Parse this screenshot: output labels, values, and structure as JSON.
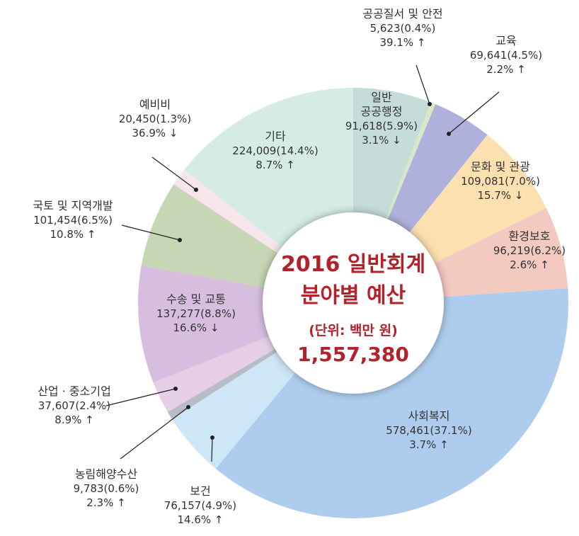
{
  "chart_data": {
    "type": "pie",
    "donut": true,
    "title": "2016 일반회계\n분야별 예산",
    "subtitle": "(단위: 백만 원)",
    "total": {
      "value": 1557380,
      "label": "1,557,380"
    },
    "categories": [
      "일반\n공공행정",
      "공공질서 및 안전",
      "교육",
      "문화 및 관광",
      "환경보호",
      "사회복지",
      "보건",
      "농림해양수산",
      "산업 · 중소기업",
      "수송 및 교통",
      "국토 및 지역개발",
      "예비비",
      "기타"
    ],
    "values": [
      91618,
      5623,
      69641,
      109081,
      96219,
      578461,
      76157,
      9783,
      37607,
      137277,
      101454,
      20450,
      224009
    ],
    "value_labels": [
      "91,618(5.9%)",
      "5,623(0.4%)",
      "69,641(4.5%)",
      "109,081(7.0%)",
      "96,219(6.2%)",
      "578,461(37.1%)",
      "76,157(4.9%)",
      "9,783(0.6%)",
      "37,607(2.4%)",
      "137,277(8.8%)",
      "101,454(6.5%)",
      "20,450(1.3%)",
      "224,009(14.4%)"
    ],
    "changes": [
      "3.1% ↓",
      "39.1% ↑",
      "2.2% ↑",
      "15.7% ↓",
      "2.6% ↑",
      "3.7% ↑",
      "14.6% ↑",
      "2.3% ↑",
      "8.9% ↑",
      "16.6% ↓",
      "10.8% ↑",
      "36.9% ↓",
      "8.7% ↑"
    ],
    "colors": [
      "#c5dcd9",
      "#d6e8c4",
      "#b0b0dc",
      "#fde0b0",
      "#f4c9c0",
      "#aecdee",
      "#cde7f7",
      "#b7bcc6",
      "#e6cfe6",
      "#d7bedf",
      "#c7d6b4",
      "#f6e6ec",
      "#d5ece6"
    ]
  }
}
